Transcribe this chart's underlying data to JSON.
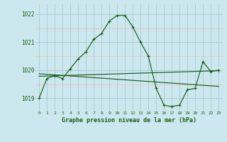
{
  "title": "Graphe pression niveau de la mer (hPa)",
  "bg_color": "#cce8ee",
  "grid_color": "#aacdd5",
  "line_color": "#1a5c1a",
  "x_ticks": [
    0,
    1,
    2,
    3,
    4,
    5,
    6,
    7,
    8,
    9,
    10,
    11,
    12,
    13,
    14,
    15,
    16,
    17,
    18,
    19,
    20,
    21,
    22,
    23
  ],
  "ylim": [
    1018.55,
    1022.35
  ],
  "yticks": [
    1019,
    1020,
    1021,
    1022
  ],
  "series1_x": [
    0,
    1,
    2,
    3,
    4,
    5,
    6,
    7,
    8,
    9,
    10,
    11,
    12,
    13,
    14,
    15,
    16,
    17,
    18,
    19,
    20,
    21,
    22,
    23
  ],
  "series1_y": [
    1019.0,
    1019.7,
    1019.8,
    1019.7,
    1020.05,
    1020.4,
    1020.65,
    1021.1,
    1021.3,
    1021.75,
    1021.95,
    1021.95,
    1021.55,
    1021.0,
    1020.5,
    1019.35,
    1018.75,
    1018.7,
    1018.75,
    1019.3,
    1019.35,
    1020.3,
    1019.95,
    1020.0
  ],
  "series2_x": [
    0,
    3,
    23
  ],
  "series2_y": [
    1019.85,
    1019.72,
    1020.0
  ],
  "series3_x": [
    0,
    15,
    23
  ],
  "series3_y": [
    1019.85,
    1019.45,
    1020.0
  ]
}
